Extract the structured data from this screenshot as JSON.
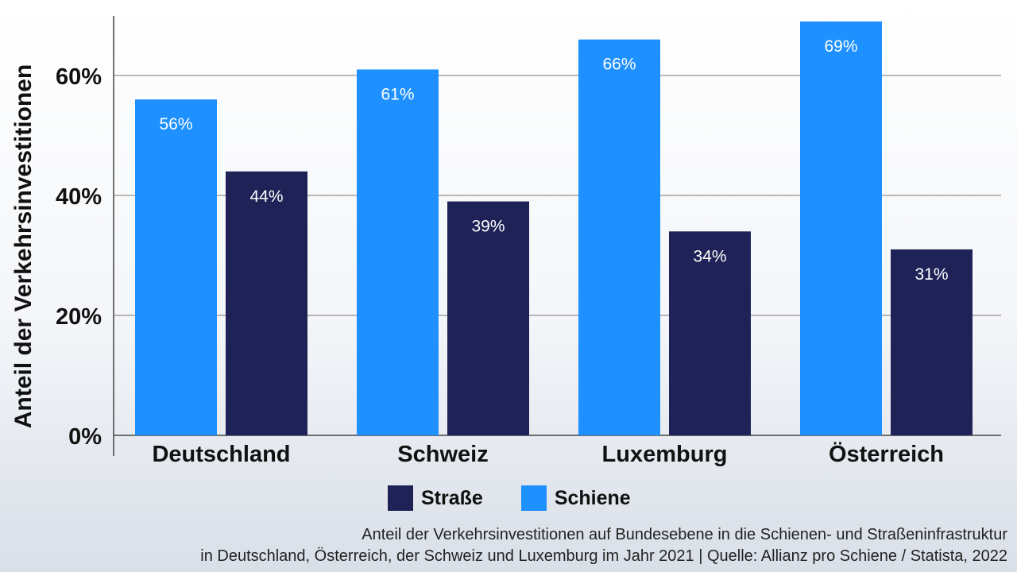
{
  "colors": {
    "strasse": "#1f2257",
    "schiene": "#1e90ff"
  },
  "chart_data": {
    "type": "bar",
    "ylabel": "Anteil der Verkehrsinvestitionen",
    "categories": [
      "Deutschland",
      "Schweiz",
      "Luxemburg",
      "Österreich"
    ],
    "series": [
      {
        "name": "Schiene",
        "values": [
          56,
          61,
          66,
          69
        ],
        "labels": [
          "56%",
          "61%",
          "66%",
          "69%"
        ]
      },
      {
        "name": "Straße",
        "values": [
          44,
          39,
          34,
          31
        ],
        "labels": [
          "44%",
          "39%",
          "34%",
          "31%"
        ]
      }
    ],
    "yticks": [
      {
        "value": 0,
        "label": "0%"
      },
      {
        "value": 20,
        "label": "20%"
      },
      {
        "value": 40,
        "label": "40%"
      },
      {
        "value": 60,
        "label": "60%"
      }
    ],
    "ylim": [
      0,
      70
    ],
    "grid": true,
    "legend_position": "bottom-center"
  },
  "legend": {
    "items": [
      "Straße",
      "Schiene"
    ]
  },
  "caption": {
    "line1": "Anteil der Verkehrsinvestitionen auf Bundesebene in die Schienen- und Straßeninfrastruktur",
    "line2": "in Deutschland, Österreich, der Schweiz und Luxemburg im Jahr 2021 | Quelle: Allianz pro Schiene / Statista, 2022"
  }
}
